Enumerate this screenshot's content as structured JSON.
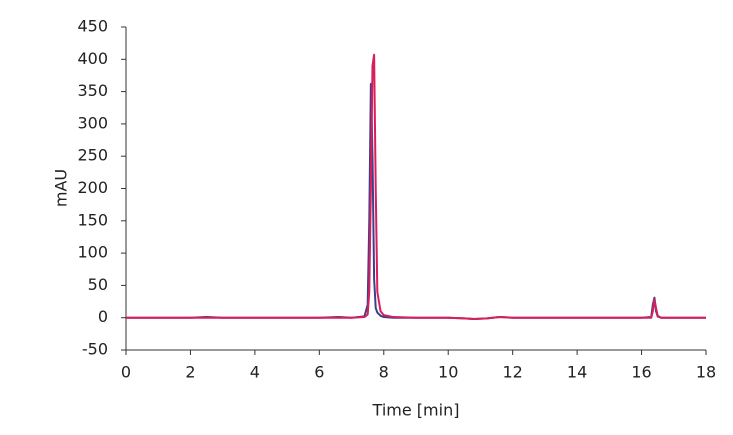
{
  "chart_data": {
    "type": "line",
    "x_label": "Time [min]",
    "y_label": "mAU",
    "x": [
      0,
      2,
      2.5,
      3,
      4,
      5,
      6,
      6.6,
      7.0,
      7.4,
      7.5,
      7.55,
      7.6,
      7.65,
      7.7,
      7.75,
      7.8,
      7.9,
      8.0,
      8.3,
      9,
      10,
      10.5,
      10.8,
      11.2,
      11.6,
      12,
      14,
      16,
      16.3,
      16.35,
      16.4,
      16.45,
      16.5,
      16.6,
      17,
      18
    ],
    "series": [
      {
        "color": "#3b3f8c",
        "values": [
          0,
          0,
          1,
          0,
          0,
          0,
          0,
          1,
          0,
          2,
          20,
          150,
          362,
          250,
          60,
          15,
          8,
          3,
          1,
          0,
          0,
          0,
          -1,
          -2,
          -1,
          1,
          0,
          0,
          0,
          1,
          20,
          31,
          10,
          2,
          0,
          0,
          0
        ]
      },
      {
        "color": "#d81e5b",
        "values": [
          0,
          0,
          0,
          0,
          0,
          0,
          0,
          0,
          0,
          1,
          5,
          40,
          200,
          390,
          407,
          200,
          40,
          10,
          4,
          1,
          0,
          0,
          -1,
          -2,
          -1,
          1,
          0,
          0,
          0,
          0,
          10,
          28,
          15,
          3,
          0,
          0,
          0
        ]
      }
    ],
    "xlim": [
      0,
      18
    ],
    "xticks": [
      0,
      2,
      4,
      6,
      8,
      10,
      12,
      14,
      16,
      18
    ],
    "ylim": [
      -50,
      450
    ],
    "yticks": [
      -50,
      0,
      50,
      100,
      150,
      200,
      250,
      300,
      350,
      400,
      450
    ],
    "grid": false
  }
}
